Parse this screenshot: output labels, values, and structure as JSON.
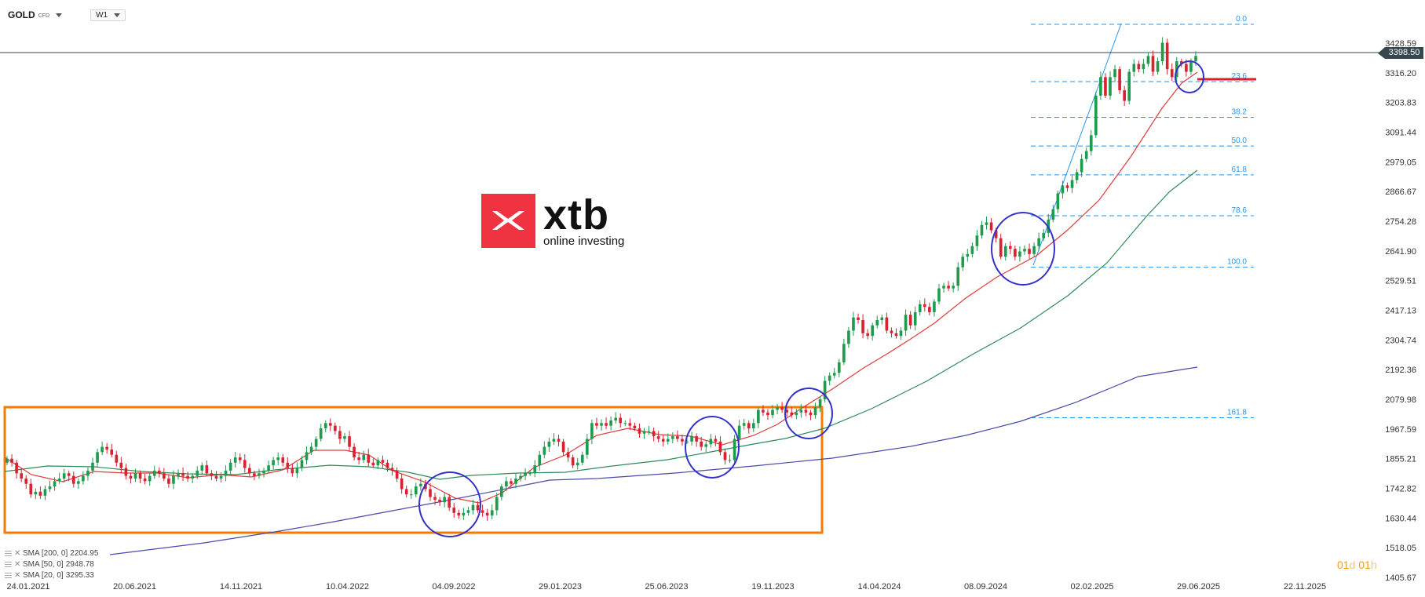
{
  "toolbar": {
    "symbol": "GOLD",
    "symbol_type": "CFD",
    "timeframe": "W1"
  },
  "logo": {
    "word": "xtb",
    "tagline": "online investing"
  },
  "price_axis": {
    "ticks": [
      "3428.59",
      "3316.20",
      "3203.83",
      "3091.44",
      "2979.05",
      "2866.67",
      "2754.28",
      "2641.90",
      "2529.51",
      "2417.13",
      "2304.74",
      "2192.36",
      "2079.98",
      "1967.59",
      "1855.21",
      "1742.82",
      "1630.44",
      "1518.05",
      "1405.67"
    ],
    "current_price": "3398.50"
  },
  "time_axis": {
    "ticks": [
      "24.01.2021",
      "20.06.2021",
      "14.11.2021",
      "10.04.2022",
      "04.09.2022",
      "29.01.2023",
      "25.06.2023",
      "19.11.2023",
      "14.04.2024",
      "08.09.2024",
      "02.02.2025",
      "29.06.2025",
      "22.11.2025"
    ]
  },
  "fibonacci": [
    {
      "level": "0.0",
      "price": 3500
    },
    {
      "level": "23.6",
      "price": 3283
    },
    {
      "level": "38.2",
      "price": 3148
    },
    {
      "level": "50.0",
      "price": 3039
    },
    {
      "level": "61.8",
      "price": 2930
    },
    {
      "level": "78.6",
      "price": 2775
    },
    {
      "level": "100.0",
      "price": 2580
    },
    {
      "level": "161.8",
      "price": 2010
    }
  ],
  "indicators": [
    {
      "label": "SMA [200, 0]",
      "value": "2204.95",
      "color": "#4a4aa8"
    },
    {
      "label": "SMA [50, 0]",
      "value": "2948.78",
      "color": "#2e8b57"
    },
    {
      "label": "SMA [20, 0]",
      "value": "3295.33",
      "color": "#e03b3b"
    }
  ],
  "countdown": {
    "d_value": "01",
    "d_unit": "d",
    "h_value": "01",
    "h_unit": "h"
  },
  "colors": {
    "bull": "#1f9b4e",
    "bear": "#d9212f",
    "fib": "#2196f3",
    "annot": "#3232c8",
    "consolidation": "#f57c00",
    "support": "#d9212f"
  },
  "chart_data": {
    "type": "candlestick",
    "instrument": "GOLD CFD",
    "timeframe": "W1",
    "ylim": [
      1405.67,
      3428.59
    ],
    "x_ticks": [
      "24.01.2021",
      "20.06.2021",
      "14.11.2021",
      "10.04.2022",
      "04.09.2022",
      "29.01.2023",
      "25.06.2023",
      "19.11.2023",
      "14.04.2024",
      "08.09.2024",
      "02.02.2025",
      "29.06.2025",
      "22.11.2025"
    ],
    "closes": [
      1855,
      1840,
      1800,
      1780,
      1760,
      1720,
      1730,
      1715,
      1740,
      1750,
      1770,
      1780,
      1800,
      1790,
      1760,
      1770,
      1790,
      1810,
      1840,
      1880,
      1900,
      1890,
      1870,
      1840,
      1820,
      1790,
      1780,
      1800,
      1780,
      1770,
      1790,
      1810,
      1800,
      1780,
      1760,
      1790,
      1800,
      1790,
      1780,
      1790,
      1810,
      1830,
      1800,
      1790,
      1780,
      1790,
      1810,
      1840,
      1860,
      1850,
      1820,
      1800,
      1790,
      1800,
      1810,
      1830,
      1850,
      1860,
      1840,
      1820,
      1800,
      1820,
      1850,
      1880,
      1900,
      1930,
      1970,
      1990,
      1980,
      1960,
      1930,
      1940,
      1900,
      1860,
      1850,
      1870,
      1840,
      1830,
      1850,
      1840,
      1820,
      1810,
      1780,
      1740,
      1720,
      1720,
      1750,
      1760,
      1740,
      1710,
      1700,
      1690,
      1710,
      1670,
      1650,
      1640,
      1650,
      1660,
      1680,
      1660,
      1650,
      1640,
      1660,
      1710,
      1750,
      1770,
      1760,
      1780,
      1790,
      1800,
      1800,
      1830,
      1870,
      1900,
      1920,
      1930,
      1920,
      1880,
      1860,
      1830,
      1840,
      1870,
      1930,
      1990,
      1980,
      1990,
      1980,
      2000,
      2010,
      1990,
      1990,
      1980,
      1970,
      1950,
      1960,
      1960,
      1940,
      1930,
      1920,
      1930,
      1940,
      1930,
      1920,
      1920,
      1940,
      1920,
      1900,
      1910,
      1930,
      1920,
      1880,
      1850,
      1850,
      1930,
      1980,
      1990,
      1970,
      1990,
      2040,
      2030,
      2020,
      2040,
      2050,
      2040,
      2030,
      2020,
      2030,
      2040,
      2030,
      2020,
      2050,
      2080,
      2150,
      2170,
      2180,
      2220,
      2290,
      2340,
      2390,
      2380,
      2330,
      2320,
      2360,
      2380,
      2390,
      2340,
      2330,
      2320,
      2340,
      2400,
      2360,
      2410,
      2440,
      2430,
      2410,
      2450,
      2500,
      2510,
      2500,
      2510,
      2580,
      2620,
      2630,
      2660,
      2700,
      2740,
      2750,
      2720,
      2690,
      2620,
      2660,
      2650,
      2620,
      2640,
      2650,
      2630,
      2660,
      2690,
      2710,
      2760,
      2800,
      2860,
      2890,
      2880,
      2910,
      2940,
      2990,
      3020,
      3080,
      3230,
      3300,
      3230,
      3300,
      3330,
      3250,
      3210,
      3320,
      3350,
      3330,
      3350,
      3380,
      3320,
      3360,
      3430,
      3330,
      3300,
      3360,
      3350,
      3320,
      3360,
      3380
    ],
    "series": [
      {
        "name": "SMA [200, 0]",
        "last": 2204.95
      },
      {
        "name": "SMA [50, 0]",
        "last": 2948.78
      },
      {
        "name": "SMA [20, 0]",
        "last": 3295.33
      }
    ],
    "fibonacci_levels": [
      {
        "level": "0.0",
        "price": 3500
      },
      {
        "level": "23.6",
        "price": 3283
      },
      {
        "level": "38.2",
        "price": 3148
      },
      {
        "level": "50.0",
        "price": 3039
      },
      {
        "level": "61.8",
        "price": 2930
      },
      {
        "level": "78.6",
        "price": 2775
      },
      {
        "level": "100.0",
        "price": 2580
      },
      {
        "level": "161.8",
        "price": 2010
      }
    ],
    "annotations": [
      {
        "type": "rectangle",
        "label": "consolidation",
        "price_range": [
          1590,
          2090
        ]
      },
      {
        "type": "horizontal-line",
        "label": "support",
        "price": 3283
      },
      {
        "type": "circle-markers",
        "count": 5
      }
    ]
  }
}
